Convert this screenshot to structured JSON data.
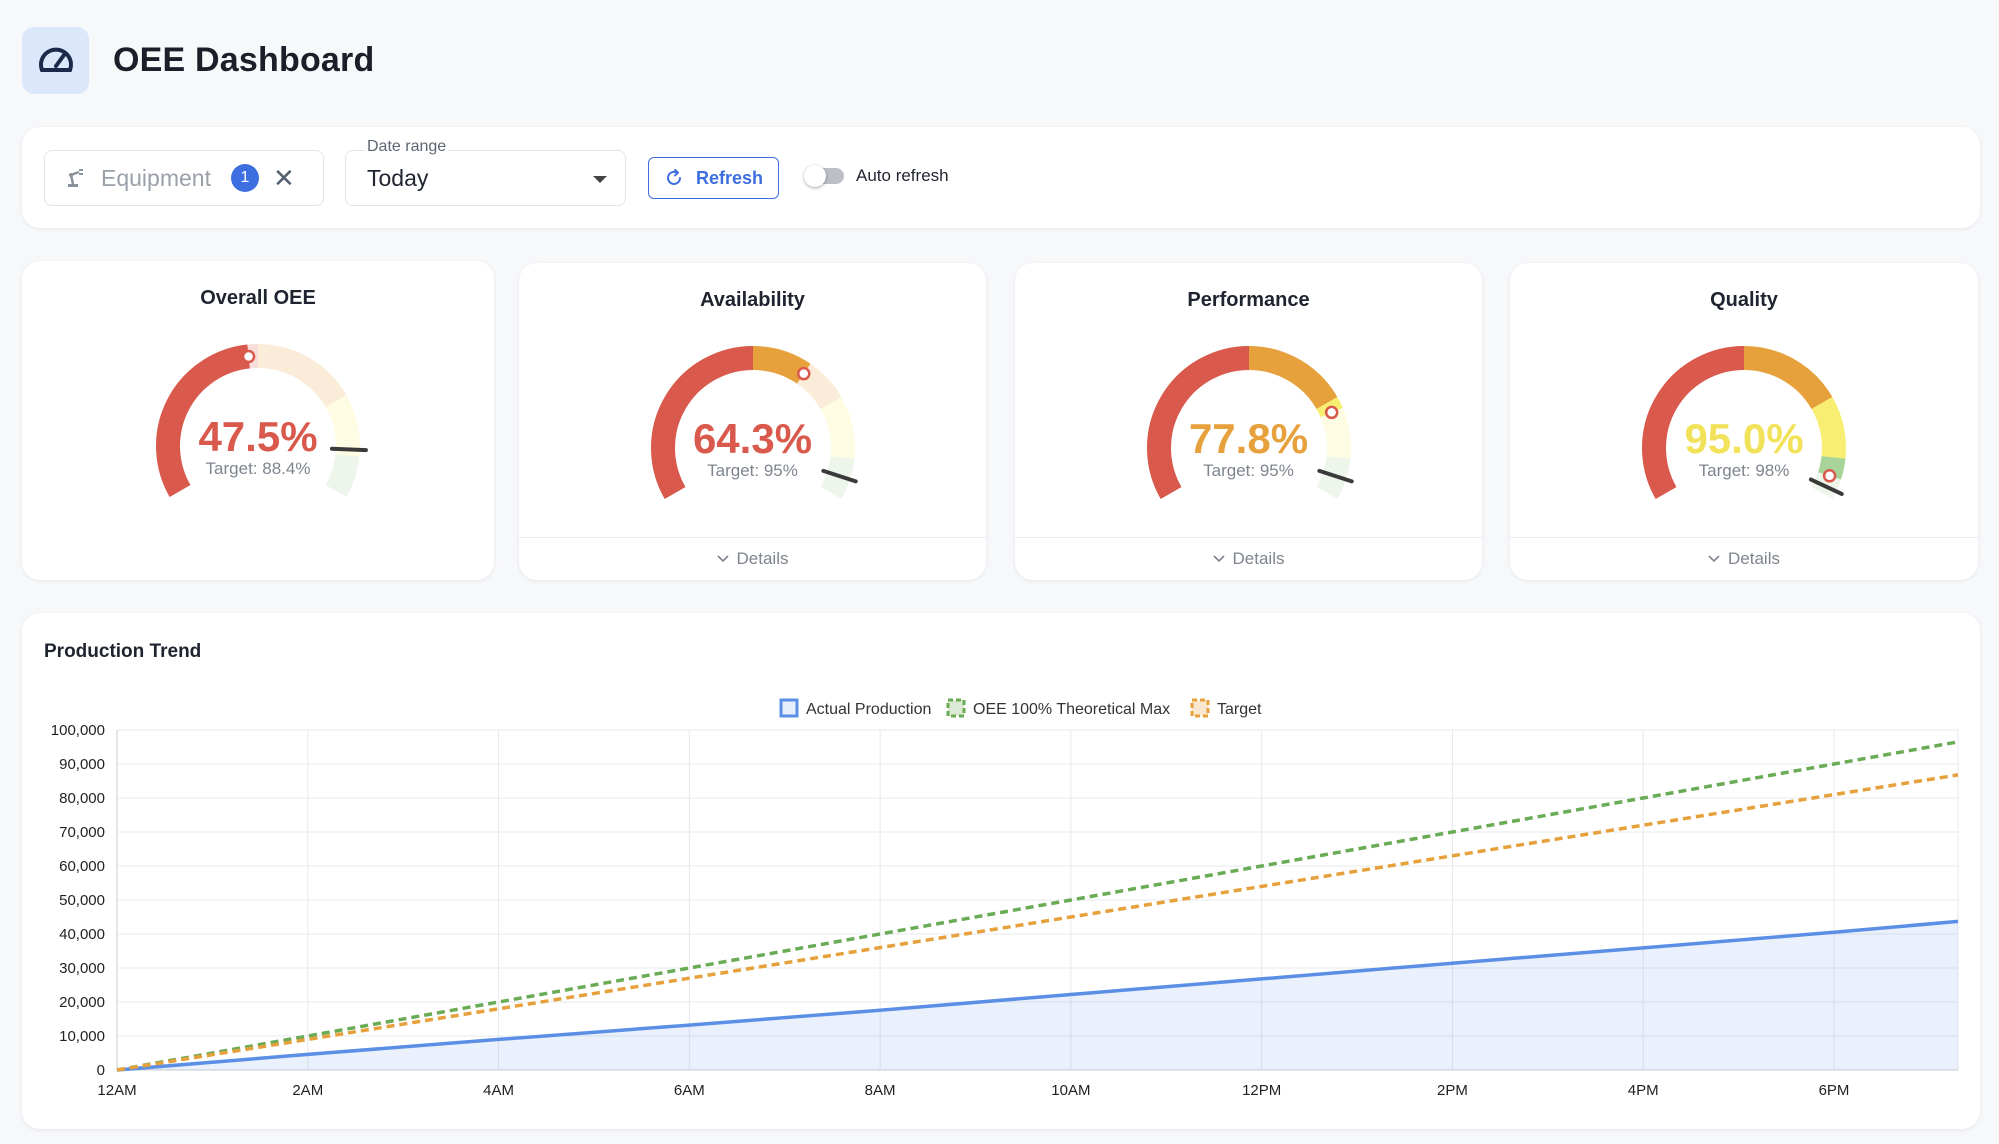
{
  "header": {
    "title": "OEE Dashboard",
    "icon": "speedometer-icon"
  },
  "filters": {
    "equipment_placeholder": "Equipment",
    "equipment_count": "1",
    "date_range_label": "Date range",
    "date_range_value": "Today",
    "refresh_label": "Refresh",
    "auto_refresh_label": "Auto refresh",
    "auto_refresh_on": false
  },
  "gauges": [
    {
      "title": "Overall OEE",
      "value": 47.5,
      "value_label": "47.5%",
      "target": 88.4,
      "target_label": "Target: 88.4%",
      "value_color": "#d9594c",
      "details": ""
    },
    {
      "title": "Availability",
      "value": 64.3,
      "value_label": "64.3%",
      "target": 95,
      "target_label": "Target: 95%",
      "value_color": "#d9594c",
      "details": "Details"
    },
    {
      "title": "Performance",
      "value": 77.8,
      "value_label": "77.8%",
      "target": 95,
      "target_label": "Target: 95%",
      "value_color": "#e6a13c",
      "details": "Details"
    },
    {
      "title": "Quality",
      "value": 95.0,
      "value_label": "95.0%",
      "target": 98,
      "target_label": "Target: 98%",
      "value_color": "#f2e25a",
      "details": "Details"
    }
  ],
  "colors": {
    "red": "#d9594c",
    "orange": "#e6a13c",
    "yellow": "#f8ee72",
    "green": "#a8d49a",
    "accent": "#3e6fe0"
  },
  "trend": {
    "title": "Production Trend",
    "chart_data": {
      "type": "line",
      "x": [
        "12AM",
        "2AM",
        "4AM",
        "6AM",
        "8AM",
        "10AM",
        "12PM",
        "2PM",
        "4PM",
        "6PM"
      ],
      "x_hours_end": 19.3,
      "ylim": [
        0,
        100000
      ],
      "yticks": [
        "0",
        "10,000",
        "20,000",
        "30,000",
        "40,000",
        "50,000",
        "60,000",
        "70,000",
        "80,000",
        "90,000",
        "100,000"
      ],
      "legend_position": "top-center",
      "grid": true,
      "series": [
        {
          "name": "Actual Production",
          "color": "#5b8fe6",
          "style": "solid",
          "fill": true,
          "values": [
            0,
            4600,
            9000,
            13200,
            17600,
            22200,
            26800,
            31400,
            35900,
            40500
          ],
          "end_value": 43700
        },
        {
          "name": "OEE 100% Theoretical Max",
          "color": "#6aab55",
          "style": "dashed",
          "fill": false,
          "values": [
            0,
            10000,
            20000,
            30000,
            40000,
            50000,
            60000,
            70000,
            80000,
            90000
          ],
          "end_value": 96500
        },
        {
          "name": "Target",
          "color": "#e6a13c",
          "style": "dashed",
          "fill": false,
          "values": [
            0,
            9000,
            18000,
            27000,
            36000,
            45000,
            54000,
            63000,
            72000,
            81000
          ],
          "end_value": 86800
        }
      ]
    }
  }
}
